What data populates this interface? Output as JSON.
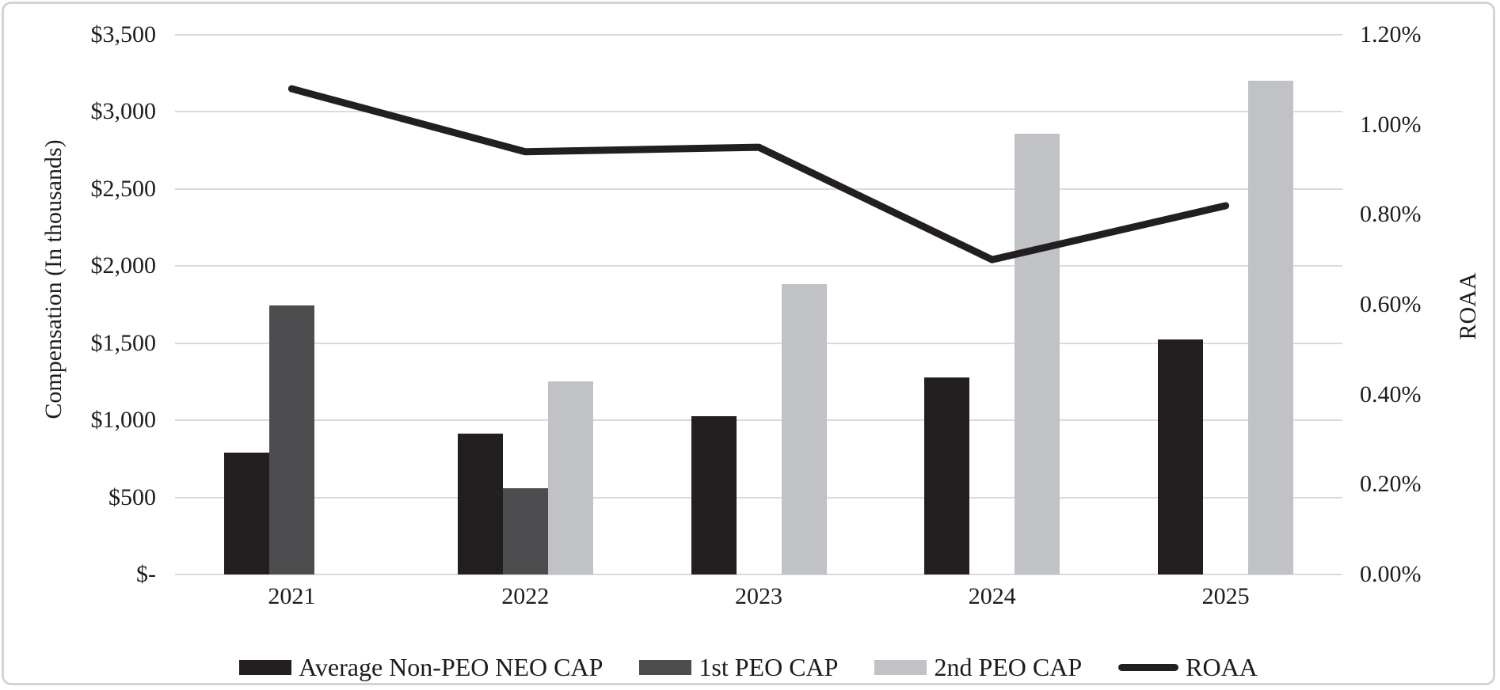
{
  "chart_data": {
    "type": "combo-bar-line",
    "title": "",
    "categories": [
      "2021",
      "2022",
      "2023",
      "2024",
      "2025"
    ],
    "series": [
      {
        "name": "Average Non-PEO NEO CAP",
        "chart": "bar",
        "axis": "left",
        "color": "#231f20",
        "values": [
          790,
          915,
          1025,
          1280,
          1525
        ]
      },
      {
        "name": "1st PEO CAP",
        "chart": "bar",
        "axis": "left",
        "color": "#4d4d4f",
        "values": [
          1745,
          560,
          null,
          null,
          null
        ]
      },
      {
        "name": "2nd PEO CAP",
        "chart": "bar",
        "axis": "left",
        "color": "#c1c2c5",
        "values": [
          null,
          1250,
          1885,
          2860,
          3200
        ]
      },
      {
        "name": "ROAA",
        "chart": "line",
        "axis": "right",
        "color": "#231f20",
        "values": [
          1.08,
          0.94,
          0.95,
          0.7,
          0.82
        ]
      }
    ],
    "left_axis": {
      "title": "Compensation (In thousands)",
      "min": 0,
      "max": 3500,
      "ticks": [
        "$3,500",
        "$3,000",
        "$2,500",
        "$2,000",
        "$1,500",
        "$1,000",
        "$500",
        "$-"
      ]
    },
    "right_axis": {
      "title": "ROAA",
      "min": 0,
      "max": 1.2,
      "ticks": [
        "1.20%",
        "1.00%",
        "0.80%",
        "0.60%",
        "0.40%",
        "0.20%",
        "0.00%"
      ]
    },
    "grid": "horizontal",
    "legend_position": "bottom"
  },
  "colors": {
    "gridline": "#dadada",
    "text": "#1c1c1c",
    "background": "#ffffff",
    "card_border": "#d4d4d4"
  }
}
